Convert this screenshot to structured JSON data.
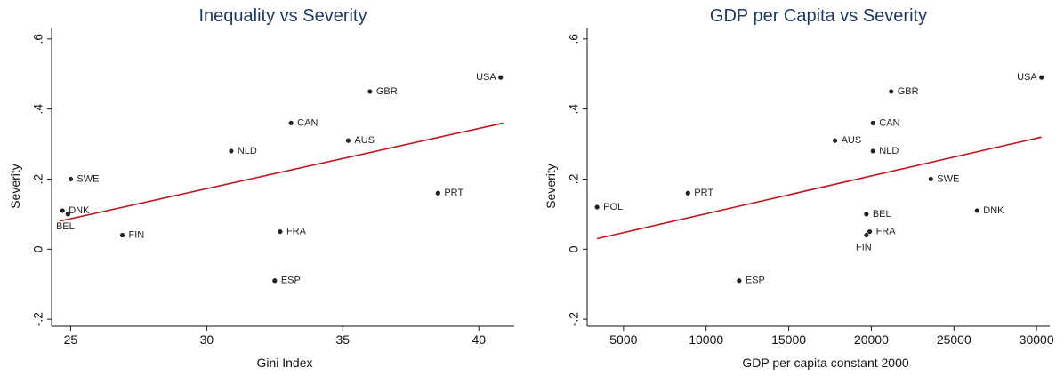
{
  "chart_data": [
    {
      "type": "scatter",
      "title": "Inequality vs Severity",
      "xlabel": "Gini Index",
      "ylabel": "Severity",
      "xlim": [
        24.3,
        41.3
      ],
      "ylim": [
        -0.22,
        0.63
      ],
      "xticks": [
        25,
        30,
        35,
        40
      ],
      "xtick_labels": [
        "25",
        "30",
        "35",
        "40"
      ],
      "yticks": [
        -0.2,
        0,
        0.2,
        0.4,
        0.6
      ],
      "ytick_labels": [
        "-.2",
        "0",
        ".2",
        ".4",
        ".6"
      ],
      "points": [
        {
          "label": "USA",
          "x": 40.8,
          "y": 0.49,
          "label_pos": "left"
        },
        {
          "label": "GBR",
          "x": 36.0,
          "y": 0.45,
          "label_pos": "right"
        },
        {
          "label": "CAN",
          "x": 33.1,
          "y": 0.36,
          "label_pos": "right"
        },
        {
          "label": "AUS",
          "x": 35.2,
          "y": 0.31,
          "label_pos": "right"
        },
        {
          "label": "NLD",
          "x": 30.9,
          "y": 0.28,
          "label_pos": "right"
        },
        {
          "label": "SWE",
          "x": 25.0,
          "y": 0.2,
          "label_pos": "right"
        },
        {
          "label": "PRT",
          "x": 38.5,
          "y": 0.16,
          "label_pos": "right"
        },
        {
          "label": "DNK",
          "x": 24.7,
          "y": 0.11,
          "label_pos": "right"
        },
        {
          "label": "BEL",
          "x": 24.9,
          "y": 0.1,
          "label_pos": "below"
        },
        {
          "label": "FIN",
          "x": 26.9,
          "y": 0.04,
          "label_pos": "right"
        },
        {
          "label": "FRA",
          "x": 32.7,
          "y": 0.05,
          "label_pos": "right"
        },
        {
          "label": "ESP",
          "x": 32.5,
          "y": -0.09,
          "label_pos": "right"
        }
      ],
      "fit_line": {
        "x": [
          24.6,
          40.9
        ],
        "y": [
          0.08,
          0.36
        ],
        "color": "#c0151b"
      }
    },
    {
      "type": "scatter",
      "title": "GDP per Capita vs Severity",
      "xlabel": "GDP per capita constant 2000",
      "ylabel": "Severity",
      "xlim": [
        2800,
        30800
      ],
      "ylim": [
        -0.22,
        0.63
      ],
      "xticks": [
        5000,
        10000,
        15000,
        20000,
        25000,
        30000
      ],
      "xtick_labels": [
        "5000",
        "10000",
        "15000",
        "20000",
        "25000",
        "30000"
      ],
      "yticks": [
        -0.2,
        0,
        0.2,
        0.4,
        0.6
      ],
      "ytick_labels": [
        "-.2",
        "0",
        ".2",
        ".4",
        ".6"
      ],
      "points": [
        {
          "label": "USA",
          "x": 30300,
          "y": 0.49,
          "label_pos": "left"
        },
        {
          "label": "GBR",
          "x": 21200,
          "y": 0.45,
          "label_pos": "right"
        },
        {
          "label": "CAN",
          "x": 20100,
          "y": 0.36,
          "label_pos": "right"
        },
        {
          "label": "AUS",
          "x": 17800,
          "y": 0.31,
          "label_pos": "right"
        },
        {
          "label": "NLD",
          "x": 20100,
          "y": 0.28,
          "label_pos": "right"
        },
        {
          "label": "SWE",
          "x": 23600,
          "y": 0.2,
          "label_pos": "right"
        },
        {
          "label": "PRT",
          "x": 8900,
          "y": 0.16,
          "label_pos": "right"
        },
        {
          "label": "POL",
          "x": 3400,
          "y": 0.12,
          "label_pos": "right"
        },
        {
          "label": "DNK",
          "x": 26400,
          "y": 0.11,
          "label_pos": "right"
        },
        {
          "label": "BEL",
          "x": 19700,
          "y": 0.1,
          "label_pos": "right"
        },
        {
          "label": "FRA",
          "x": 19900,
          "y": 0.05,
          "label_pos": "right"
        },
        {
          "label": "FIN",
          "x": 19700,
          "y": 0.04,
          "label_pos": "below"
        },
        {
          "label": "ESP",
          "x": 12000,
          "y": -0.09,
          "label_pos": "right"
        }
      ],
      "fit_line": {
        "x": [
          3400,
          30300
        ],
        "y": [
          0.03,
          0.32
        ],
        "color": "#c0151b"
      }
    }
  ]
}
